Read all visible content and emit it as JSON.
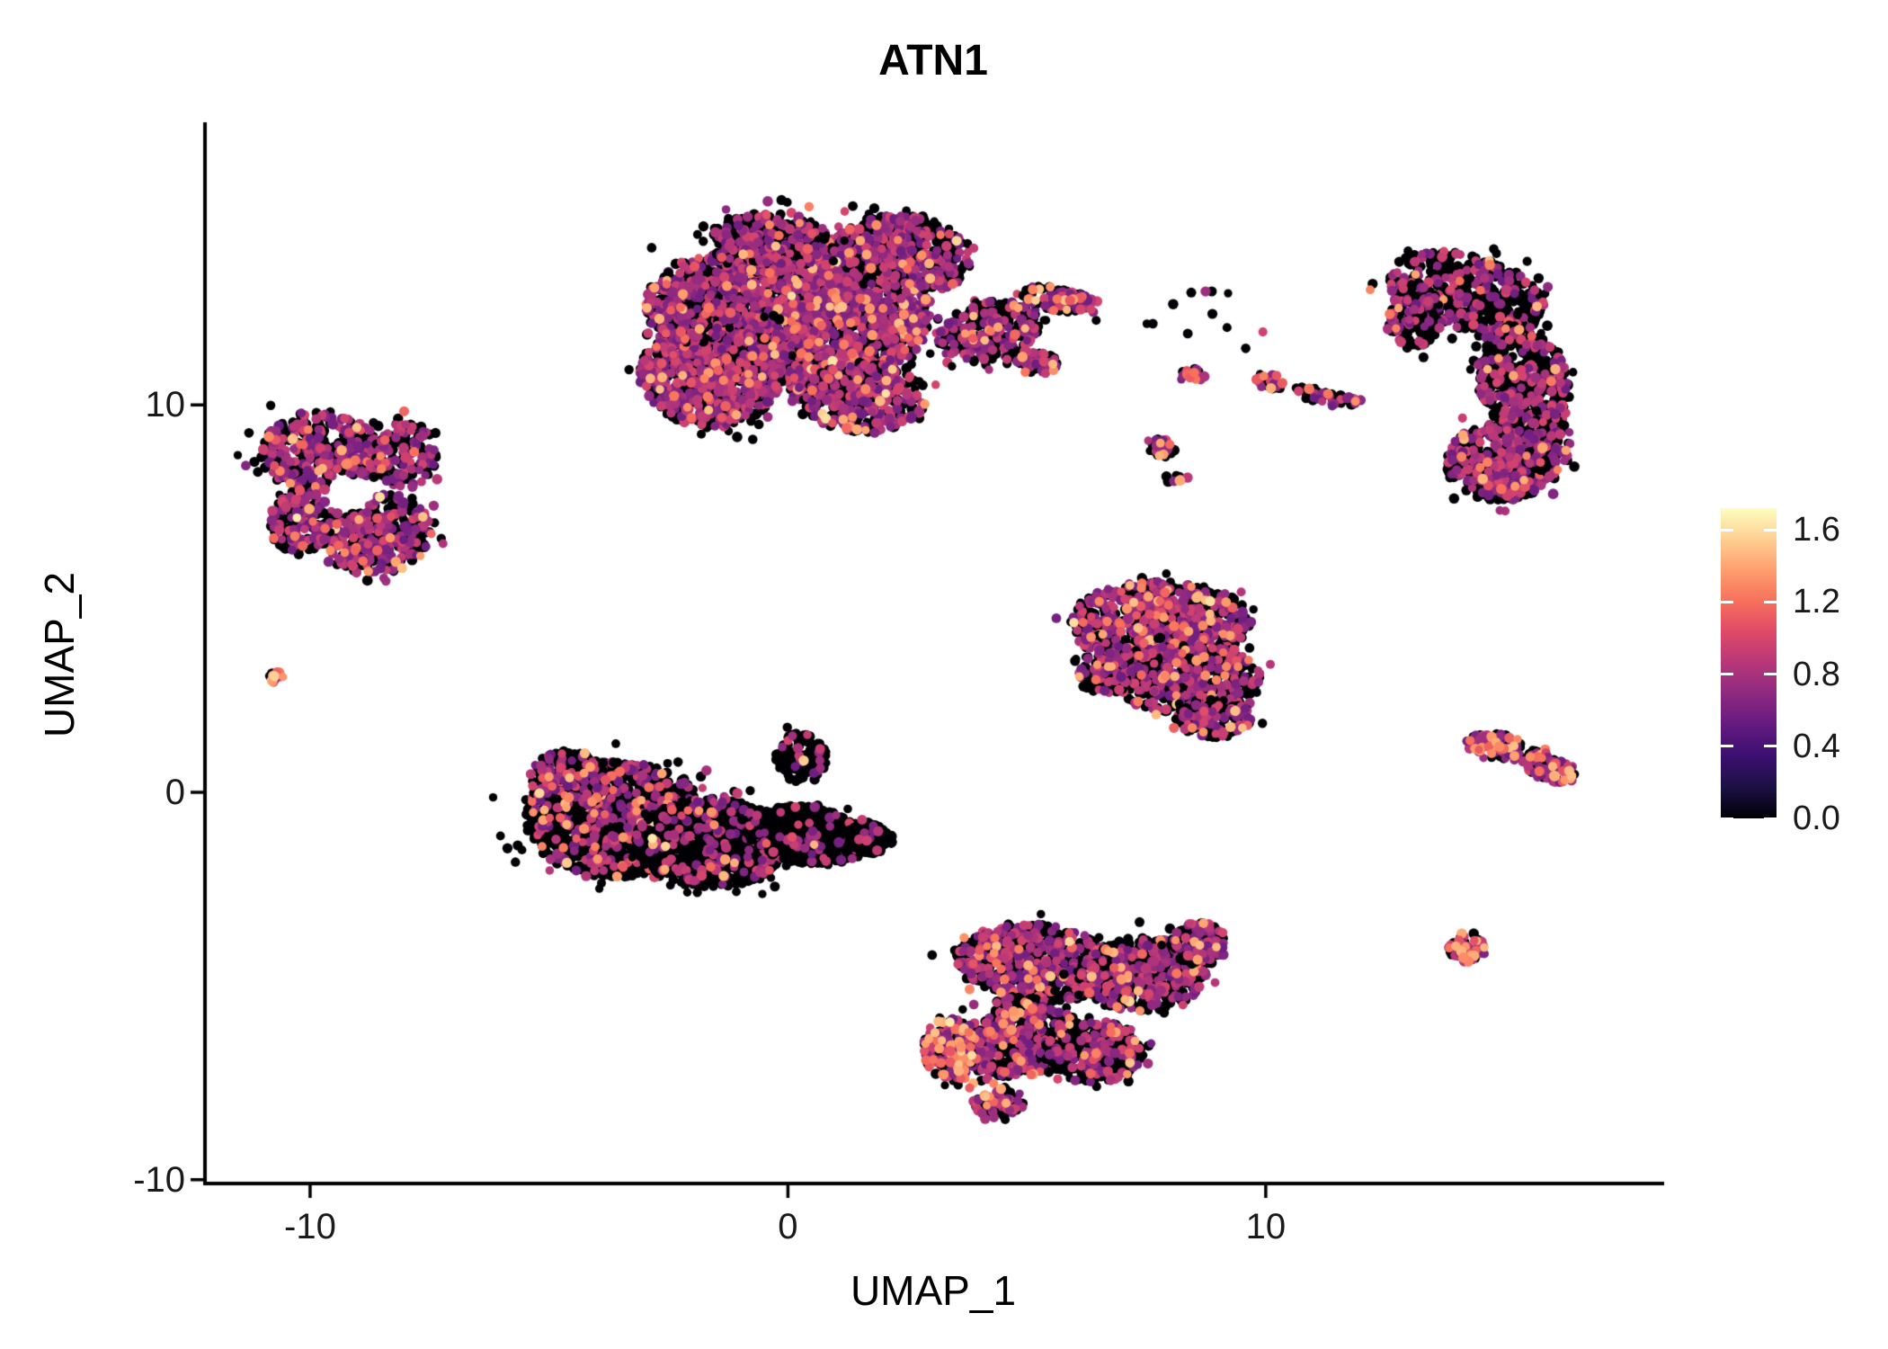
{
  "chart_data": {
    "type": "scatter",
    "title": "ATN1",
    "xlabel": "UMAP_1",
    "ylabel": "UMAP_2",
    "xlim": [
      -12.2,
      18.3
    ],
    "ylim": [
      -10.1,
      17.2
    ],
    "x_ticks": [
      -10,
      0,
      10
    ],
    "y_ticks": [
      -10,
      0,
      10
    ],
    "grid": false,
    "legend_position": "right",
    "colorbar": {
      "tick_labels": [
        "1.6",
        "1.2",
        "0.8",
        "0.4",
        "0.0"
      ],
      "tick_values": [
        1.6,
        1.2,
        0.8,
        0.4,
        0.0
      ],
      "vmin": 0.0,
      "vmax": 1.72,
      "colormap": "magma",
      "stops": [
        "#000004",
        "#1c1044",
        "#3b0f70",
        "#641a80",
        "#8c2981",
        "#b73779",
        "#de4968",
        "#f7705c",
        "#fe9f6d",
        "#fecf92",
        "#fcfdbf"
      ]
    },
    "point_style": {
      "radius_px": 4.6,
      "radius_jitter_px": 1.3
    },
    "expression_sampling": {
      "zero_value": 0.0,
      "mid_range": [
        0.55,
        1.0
      ],
      "high_range": [
        1.05,
        1.5
      ],
      "bright_chance": 0.06,
      "bright_range": [
        1.5,
        1.65
      ]
    },
    "seed": 1337,
    "clusters": [
      {
        "name": "top-center-large",
        "blobs": [
          {
            "cx": 0.3,
            "cy": 12.4,
            "rx": 2.7,
            "ry": 2.1,
            "rot": 0,
            "n": 2400,
            "p0": 0.42,
            "pm": 0.52,
            "ph": 0.06
          },
          {
            "cx": -1.6,
            "cy": 10.8,
            "rx": 1.5,
            "ry": 1.4,
            "rot": 0,
            "n": 800,
            "p0": 0.45,
            "pm": 0.5,
            "ph": 0.05
          },
          {
            "cx": 2.4,
            "cy": 13.9,
            "rx": 1.5,
            "ry": 1.0,
            "rot": -10,
            "n": 450,
            "p0": 0.5,
            "pm": 0.46,
            "ph": 0.04
          },
          {
            "cx": -0.4,
            "cy": 14.2,
            "rx": 1.2,
            "ry": 0.8,
            "rot": 0,
            "n": 300,
            "p0": 0.5,
            "pm": 0.46,
            "ph": 0.04
          },
          {
            "cx": -2.0,
            "cy": 12.6,
            "rx": 1.0,
            "ry": 1.0,
            "rot": 0,
            "n": 350,
            "p0": 0.45,
            "pm": 0.5,
            "ph": 0.05
          },
          {
            "cx": 1.6,
            "cy": 10.2,
            "rx": 1.3,
            "ry": 0.9,
            "rot": 0,
            "n": 400,
            "p0": 0.5,
            "pm": 0.45,
            "ph": 0.05
          },
          {
            "cx": 4.2,
            "cy": 11.9,
            "rx": 1.1,
            "ry": 0.75,
            "rot": 20,
            "n": 260,
            "p0": 0.55,
            "pm": 0.4,
            "ph": 0.05
          },
          {
            "cx": 5.7,
            "cy": 12.7,
            "rx": 0.85,
            "ry": 0.3,
            "rot": -15,
            "n": 110,
            "p0": 0.45,
            "pm": 0.42,
            "ph": 0.13
          },
          {
            "cx": 5.1,
            "cy": 11.1,
            "rx": 0.55,
            "ry": 0.3,
            "rot": -10,
            "n": 70,
            "p0": 0.5,
            "pm": 0.45,
            "ph": 0.05
          }
        ]
      },
      {
        "name": "top-right-crescent",
        "blobs": [
          {
            "cx": 14.2,
            "cy": 12.9,
            "rx": 1.7,
            "ry": 0.95,
            "rot": -20,
            "n": 500,
            "p0": 0.72,
            "pm": 0.26,
            "ph": 0.02
          },
          {
            "cx": 15.4,
            "cy": 10.6,
            "rx": 0.95,
            "ry": 1.5,
            "rot": 10,
            "n": 480,
            "p0": 0.68,
            "pm": 0.3,
            "ph": 0.02
          },
          {
            "cx": 14.9,
            "cy": 8.5,
            "rx": 1.15,
            "ry": 1.0,
            "rot": 0,
            "n": 420,
            "p0": 0.55,
            "pm": 0.42,
            "ph": 0.03
          },
          {
            "cx": 13.1,
            "cy": 12.3,
            "rx": 0.6,
            "ry": 0.85,
            "rot": 0,
            "n": 160,
            "p0": 0.7,
            "pm": 0.28,
            "ph": 0.02
          },
          {
            "cx": 15.9,
            "cy": 9.0,
            "rx": 0.5,
            "ry": 0.8,
            "rot": 0,
            "n": 120,
            "p0": 0.55,
            "pm": 0.4,
            "ph": 0.05
          }
        ]
      },
      {
        "name": "left-ring",
        "blobs": [
          {
            "cx": -9.8,
            "cy": 8.8,
            "rx": 1.25,
            "ry": 1.05,
            "rot": 0,
            "n": 400,
            "p0": 0.5,
            "pm": 0.45,
            "ph": 0.05,
            "hole": [
              -9.2,
              7.7,
              0.5
            ]
          },
          {
            "cx": -8.6,
            "cy": 6.7,
            "rx": 1.15,
            "ry": 1.05,
            "rot": 0,
            "n": 380,
            "p0": 0.48,
            "pm": 0.47,
            "ph": 0.05,
            "hole": [
              -9.2,
              7.7,
              0.5
            ]
          },
          {
            "cx": -10.2,
            "cy": 7.0,
            "rx": 0.7,
            "ry": 0.8,
            "rot": 0,
            "n": 170,
            "p0": 0.5,
            "pm": 0.45,
            "ph": 0.05,
            "hole": [
              -9.2,
              7.7,
              0.5
            ]
          },
          {
            "cx": -8.0,
            "cy": 8.7,
            "rx": 0.65,
            "ry": 0.85,
            "rot": 0,
            "n": 160,
            "p0": 0.52,
            "pm": 0.44,
            "ph": 0.04,
            "hole": [
              -9.2,
              7.7,
              0.5
            ]
          }
        ]
      },
      {
        "name": "left-small-dot",
        "blobs": [
          {
            "cx": -10.75,
            "cy": 3.0,
            "rx": 0.22,
            "ry": 0.16,
            "rot": -20,
            "n": 14,
            "p0": 0.15,
            "pm": 0.35,
            "ph": 0.5
          }
        ]
      },
      {
        "name": "mid-right-triangle",
        "blobs": [
          {
            "cx": 7.8,
            "cy": 4.4,
            "rx": 1.9,
            "ry": 1.05,
            "rot": 0,
            "n": 750,
            "p0": 0.52,
            "pm": 0.4,
            "ph": 0.08
          },
          {
            "cx": 8.4,
            "cy": 2.9,
            "rx": 1.5,
            "ry": 0.95,
            "rot": 0,
            "n": 520,
            "p0": 0.58,
            "pm": 0.37,
            "ph": 0.05
          },
          {
            "cx": 8.9,
            "cy": 1.9,
            "rx": 0.8,
            "ry": 0.5,
            "rot": 0,
            "n": 160,
            "p0": 0.6,
            "pm": 0.35,
            "ph": 0.05
          },
          {
            "cx": 6.6,
            "cy": 3.3,
            "rx": 0.6,
            "ry": 0.8,
            "rot": 0,
            "n": 150,
            "p0": 0.55,
            "pm": 0.4,
            "ph": 0.05
          }
        ]
      },
      {
        "name": "bottom-left-dark",
        "blobs": [
          {
            "cx": -3.6,
            "cy": -0.7,
            "rx": 1.9,
            "ry": 1.5,
            "rot": 0,
            "n": 1400,
            "p0": 0.78,
            "pm": 0.18,
            "ph": 0.04
          },
          {
            "cx": -1.6,
            "cy": -1.3,
            "rx": 1.6,
            "ry": 1.15,
            "rot": 0,
            "n": 950,
            "p0": 0.84,
            "pm": 0.14,
            "ph": 0.02
          },
          {
            "cx": 0.4,
            "cy": -1.1,
            "rx": 1.3,
            "ry": 0.75,
            "rot": -12,
            "n": 480,
            "p0": 0.9,
            "pm": 0.09,
            "ph": 0.01
          },
          {
            "cx": 1.7,
            "cy": -1.2,
            "rx": 0.5,
            "ry": 0.4,
            "rot": 0,
            "n": 110,
            "p0": 0.92,
            "pm": 0.08,
            "ph": 0.0
          },
          {
            "cx": -4.6,
            "cy": 0.3,
            "rx": 0.8,
            "ry": 0.8,
            "rot": 0,
            "n": 250,
            "p0": 0.6,
            "pm": 0.33,
            "ph": 0.07
          },
          {
            "cx": 0.3,
            "cy": 0.9,
            "rx": 0.55,
            "ry": 0.65,
            "rot": 0,
            "n": 110,
            "p0": 0.85,
            "pm": 0.14,
            "ph": 0.01
          }
        ]
      },
      {
        "name": "bottom-center",
        "blobs": [
          {
            "cx": 5.2,
            "cy": -4.4,
            "rx": 1.7,
            "ry": 1.0,
            "rot": -8,
            "n": 650,
            "p0": 0.58,
            "pm": 0.37,
            "ph": 0.05
          },
          {
            "cx": 7.4,
            "cy": -4.7,
            "rx": 1.35,
            "ry": 0.95,
            "rot": 0,
            "n": 520,
            "p0": 0.62,
            "pm": 0.34,
            "ph": 0.04
          },
          {
            "cx": 4.7,
            "cy": -6.3,
            "rx": 1.45,
            "ry": 1.05,
            "rot": 0,
            "n": 560,
            "p0": 0.6,
            "pm": 0.34,
            "ph": 0.06,
            "hole": [
              3.9,
              -5.5,
              0.45
            ]
          },
          {
            "cx": 6.4,
            "cy": -6.7,
            "rx": 1.05,
            "ry": 0.8,
            "rot": 0,
            "n": 330,
            "p0": 0.66,
            "pm": 0.3,
            "ph": 0.04
          },
          {
            "cx": 3.4,
            "cy": -6.7,
            "rx": 0.55,
            "ry": 0.95,
            "rot": 10,
            "n": 150,
            "p0": 0.3,
            "pm": 0.4,
            "ph": 0.3
          },
          {
            "cx": 4.4,
            "cy": -8.0,
            "rx": 0.55,
            "ry": 0.4,
            "rot": 0,
            "n": 80,
            "p0": 0.55,
            "pm": 0.35,
            "ph": 0.1
          },
          {
            "cx": 8.6,
            "cy": -3.9,
            "rx": 0.6,
            "ry": 0.55,
            "rot": 0,
            "n": 140,
            "p0": 0.6,
            "pm": 0.36,
            "ph": 0.04
          }
        ]
      },
      {
        "name": "right-streak",
        "blobs": [
          {
            "cx": 15.0,
            "cy": 1.15,
            "rx": 0.85,
            "ry": 0.33,
            "rot": -14,
            "n": 120,
            "p0": 0.35,
            "pm": 0.45,
            "ph": 0.2
          },
          {
            "cx": 15.9,
            "cy": 0.6,
            "rx": 0.6,
            "ry": 0.3,
            "rot": -18,
            "n": 90,
            "p0": 0.4,
            "pm": 0.45,
            "ph": 0.15
          }
        ]
      },
      {
        "name": "right-small-round",
        "blobs": [
          {
            "cx": 14.2,
            "cy": -4.0,
            "rx": 0.42,
            "ry": 0.38,
            "rot": 0,
            "n": 60,
            "p0": 0.3,
            "pm": 0.45,
            "ph": 0.25
          }
        ]
      },
      {
        "name": "small-islands",
        "blobs": [
          {
            "cx": 8.5,
            "cy": 10.8,
            "rx": 0.25,
            "ry": 0.2,
            "rot": 0,
            "n": 18,
            "p0": 0.35,
            "pm": 0.35,
            "ph": 0.3
          },
          {
            "cx": 10.1,
            "cy": 10.6,
            "rx": 0.32,
            "ry": 0.22,
            "rot": -20,
            "n": 28,
            "p0": 0.45,
            "pm": 0.35,
            "ph": 0.2
          },
          {
            "cx": 11.3,
            "cy": 10.2,
            "rx": 0.85,
            "ry": 0.18,
            "rot": -14,
            "n": 55,
            "p0": 0.6,
            "pm": 0.35,
            "ph": 0.05
          },
          {
            "cx": 7.8,
            "cy": 8.9,
            "rx": 0.35,
            "ry": 0.22,
            "rot": -25,
            "n": 26,
            "p0": 0.5,
            "pm": 0.35,
            "ph": 0.15
          },
          {
            "cx": 8.1,
            "cy": 8.1,
            "rx": 0.2,
            "ry": 0.14,
            "rot": 0,
            "n": 9,
            "p0": 0.6,
            "pm": 0.3,
            "ph": 0.1
          },
          {
            "cx": 8.8,
            "cy": 12.2,
            "rx": 1.4,
            "ry": 0.9,
            "rot": 0,
            "n": 12,
            "p0": 0.8,
            "pm": 0.2,
            "ph": 0.0
          }
        ]
      }
    ]
  }
}
